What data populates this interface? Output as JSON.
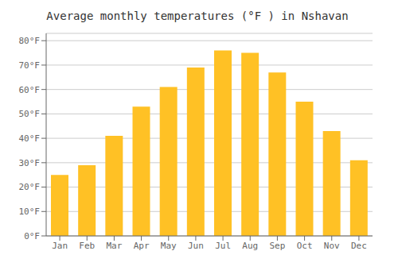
{
  "chart_data": {
    "type": "bar",
    "title": "Average monthly temperatures (°F ) in Nshavan",
    "categories": [
      "Jan",
      "Feb",
      "Mar",
      "Apr",
      "May",
      "Jun",
      "Jul",
      "Aug",
      "Sep",
      "Oct",
      "Nov",
      "Dec"
    ],
    "values": [
      25,
      29,
      41,
      53,
      61,
      69,
      76,
      75,
      67,
      55,
      43,
      31
    ],
    "color": "#FFC125",
    "ylim": [
      0,
      83
    ],
    "yticks": [
      {
        "value": 0,
        "label": "0°F"
      },
      {
        "value": 10,
        "label": "10°F"
      },
      {
        "value": 20,
        "label": "20°F"
      },
      {
        "value": 30,
        "label": "30°F"
      },
      {
        "value": 40,
        "label": "40°F"
      },
      {
        "value": 50,
        "label": "50°F"
      },
      {
        "value": 60,
        "label": "60°F"
      },
      {
        "value": 70,
        "label": "70°F"
      },
      {
        "value": 80,
        "label": "80°F"
      }
    ],
    "grid": true
  }
}
